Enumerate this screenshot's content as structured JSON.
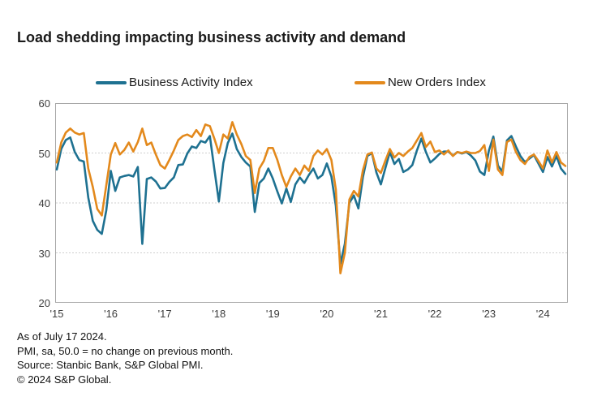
{
  "title": "Load shedding impacting business activity and demand",
  "legend": {
    "items": [
      {
        "label": "Business Activity Index",
        "color": "#1e7191"
      },
      {
        "label": "New Orders Index",
        "color": "#e3891c"
      }
    ]
  },
  "footer": {
    "as_of": "As of July 17 2024.",
    "note": "PMI, sa, 50.0 = no change on previous month.",
    "source": "Source: Stanbic Bank, S&P Global PMI.",
    "copyright": "© 2024 S&P Global."
  },
  "chart_data": {
    "type": "line",
    "title": "Load shedding impacting business activity and demand",
    "x_unit": "month",
    "x_start": "2015-01",
    "x_end": "2024-06",
    "x_tick_labels": [
      "'15",
      "'16",
      "'17",
      "'18",
      "'19",
      "'20",
      "'21",
      "'22",
      "'23",
      "'24"
    ],
    "ylim": [
      20,
      60
    ],
    "yticks": [
      20,
      30,
      40,
      50,
      60
    ],
    "grid_yticks": [
      30,
      40,
      50
    ],
    "legend_position": "top",
    "grid": "dotted horizontal",
    "frame_color": "#a8a8a8",
    "grid_color": "#cfcfcf",
    "tick_color": "#3d3d3d",
    "series": [
      {
        "name": "Business Activity Index",
        "color": "#1e7191",
        "values": [
          46.7,
          50.8,
          52.6,
          53.1,
          50.2,
          48.6,
          48.3,
          41.1,
          36.4,
          34.6,
          33.8,
          38.5,
          46.4,
          42.4,
          45.1,
          45.4,
          45.6,
          45.3,
          47.2,
          31.8,
          44.8,
          45.1,
          44.3,
          42.9,
          43.0,
          44.2,
          45.1,
          47.6,
          47.7,
          49.9,
          51.3,
          51.0,
          52.4,
          52.1,
          53.4,
          46.8,
          40.3,
          48.0,
          52.0,
          53.9,
          50.8,
          49.2,
          48.1,
          47.3,
          38.2,
          44.0,
          44.9,
          46.9,
          44.9,
          42.3,
          39.9,
          42.9,
          40.2,
          43.7,
          45.1,
          44.0,
          45.6,
          46.9,
          44.9,
          45.6,
          47.9,
          45.3,
          39.4,
          27.8,
          31.8,
          40.0,
          41.5,
          38.9,
          45.1,
          49.4,
          50.0,
          46.1,
          43.7,
          47.0,
          50.2,
          47.8,
          48.8,
          46.2,
          46.7,
          47.6,
          50.5,
          52.9,
          50.2,
          48.1,
          48.9,
          49.8,
          50.3,
          50.3,
          49.5,
          50.2,
          49.9,
          50.2,
          49.5,
          48.5,
          46.3,
          45.6,
          50.5,
          53.3,
          47.5,
          46.3,
          52.5,
          53.4,
          51.3,
          49.4,
          48.2,
          48.9,
          49.6,
          47.9,
          46.2,
          49.2,
          47.3,
          49.4,
          46.9,
          45.8
        ]
      },
      {
        "name": "New Orders Index",
        "color": "#e3891c",
        "values": [
          48.1,
          52.1,
          54.1,
          54.9,
          54.1,
          53.7,
          54.0,
          46.9,
          43.2,
          38.8,
          37.5,
          43.5,
          49.7,
          52.0,
          49.7,
          50.6,
          52.1,
          50.3,
          52.2,
          54.9,
          51.6,
          52.1,
          49.7,
          47.6,
          46.9,
          48.6,
          50.5,
          52.6,
          53.4,
          53.7,
          53.2,
          54.6,
          53.4,
          55.7,
          55.4,
          52.9,
          50.0,
          53.7,
          52.9,
          56.2,
          53.7,
          51.8,
          49.4,
          48.6,
          42.0,
          46.9,
          48.4,
          51.0,
          51.0,
          48.6,
          45.6,
          43.2,
          45.3,
          46.9,
          45.6,
          47.5,
          46.4,
          49.4,
          50.5,
          49.7,
          50.8,
          48.6,
          42.7,
          25.9,
          30.0,
          40.7,
          42.4,
          41.3,
          46.5,
          49.7,
          50.1,
          46.9,
          46.0,
          48.5,
          50.8,
          49.1,
          50.0,
          49.4,
          50.3,
          51.0,
          52.5,
          54.0,
          51.2,
          52.3,
          50.2,
          50.5,
          49.7,
          50.5,
          49.4,
          50.2,
          50.0,
          50.3,
          50.0,
          50.0,
          50.4,
          51.6,
          46.4,
          52.7,
          46.7,
          45.6,
          52.2,
          52.7,
          50.2,
          48.6,
          47.8,
          49.2,
          49.7,
          48.4,
          46.9,
          50.5,
          48.1,
          50.2,
          48.1,
          47.4
        ]
      }
    ]
  }
}
